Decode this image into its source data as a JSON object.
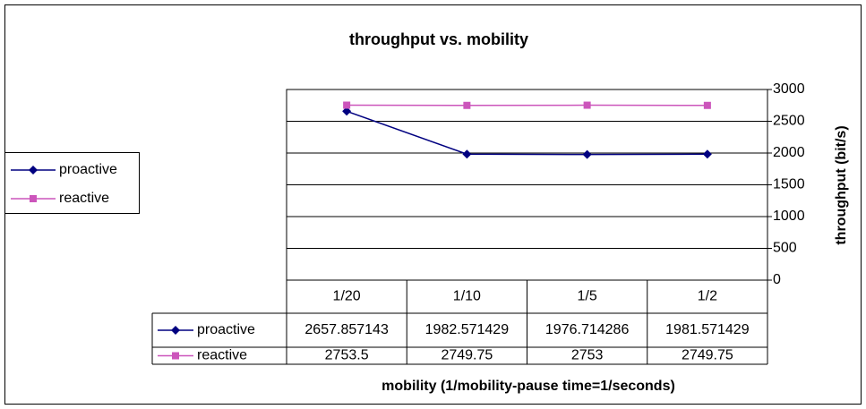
{
  "chart_data": {
    "type": "line",
    "title": "throughput vs. mobility",
    "x_label": "mobility (1/mobility-pause time=1/seconds)",
    "y_label": "throughput (bit/s)",
    "categories": [
      "1/20",
      "1/10",
      "1/5",
      "1/2"
    ],
    "series": [
      {
        "name": "proactive",
        "color": "#000080",
        "marker": "diamond",
        "values": [
          2657.857143,
          1982.571429,
          1976.714286,
          1981.571429
        ]
      },
      {
        "name": "reactive",
        "color": "#cc55bb",
        "marker": "square",
        "values": [
          2753.5,
          2749.75,
          2753,
          2749.75
        ]
      }
    ],
    "ylim": [
      0,
      3000
    ],
    "yticks": [
      0,
      500,
      1000,
      1500,
      2000,
      2500,
      3000
    ],
    "y_axis_side": "right",
    "grid": true,
    "legend_position": "left",
    "data_table": true
  }
}
